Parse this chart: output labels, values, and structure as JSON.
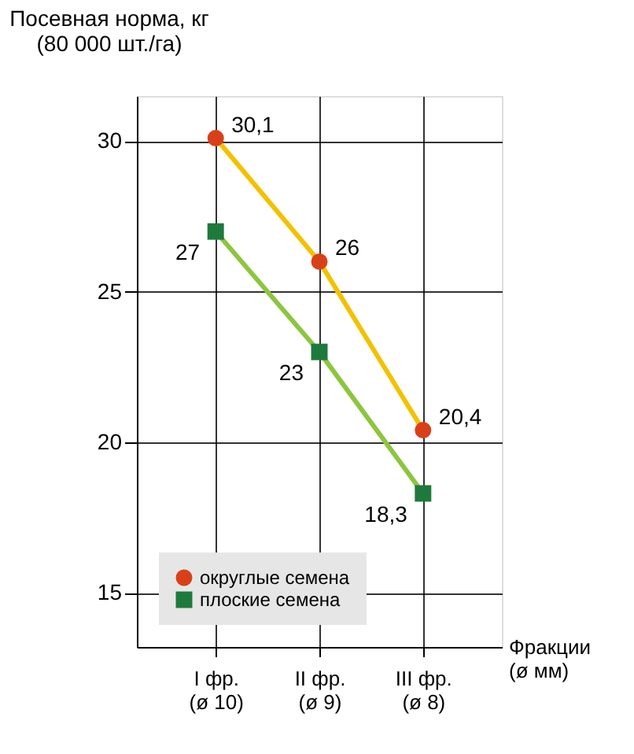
{
  "chart_data": {
    "type": "line",
    "ylabel": "Посевная норма, кг\n(80 000 шт./га)",
    "xlabel": "Фракции\n(ø мм)",
    "categories": [
      "I фр.\n(ø 10)",
      "II фр.\n(ø 9)",
      "III фр.\n(ø 8)"
    ],
    "series": [
      {
        "color": "#f2c200",
        "values": [
          30.1,
          26,
          20.4
        ]
      },
      {
        "color": "#8cc63f",
        "values": [
          27,
          23,
          18.3
        ]
      },
      {
        "type": "scatter",
        "name": "округлые семена",
        "color": "#d9401a",
        "values": [
          30.1,
          26,
          20.4
        ],
        "marker": "circle",
        "value_labels": [
          "30,1",
          "26",
          "20,4"
        ]
      },
      {
        "type": "scatter",
        "name": "плоские семена",
        "color": "#1e7a3c",
        "values": [
          27,
          23,
          18.3
        ],
        "marker": "square",
        "value_labels": [
          "27",
          "23",
          "18,3"
        ]
      }
    ],
    "ylim": [
      13.2,
      31.5
    ],
    "yticks": [
      15,
      20,
      25,
      30
    ],
    "grid": true,
    "legend": "bottom left"
  }
}
